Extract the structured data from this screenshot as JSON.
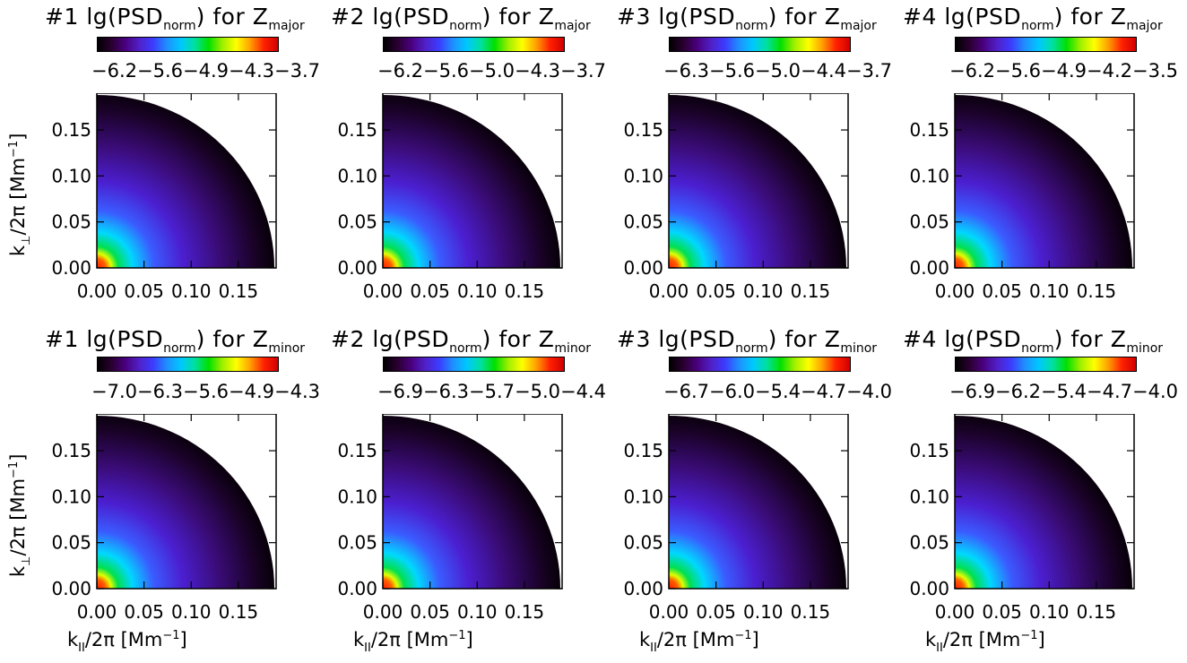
{
  "figure": {
    "y_axis_label": {
      "pre": "k",
      "sub": "⊥",
      "mid": "/2π  [Mm",
      "sup": "−1",
      "post": "]"
    },
    "x_axis_label": {
      "pre": "k",
      "sub": "II",
      "mid": "/2π  [Mm",
      "sup": "−1",
      "post": "]"
    },
    "colormap": [
      "#000000",
      "#2a0030",
      "#4a0080",
      "#5020c8",
      "#3c3cff",
      "#1e90ff",
      "#00c8ff",
      "#00e0a0",
      "#00e000",
      "#a0f000",
      "#ffff00",
      "#ffa000",
      "#ff2000",
      "#d00000"
    ]
  },
  "chart_data": [
    {
      "type": "heatmap",
      "panel": "#1",
      "component": "major",
      "title": {
        "num": "#1",
        "text": "lg(PSD",
        "sub": "norm",
        "for": ") for Z",
        "comp": "major"
      },
      "colorbar_ticks": [
        "−6.2",
        "−5.6",
        "−4.9",
        "−4.3",
        "−3.7"
      ],
      "xlim": [
        0.0,
        0.19
      ],
      "ylim": [
        0.0,
        0.19
      ],
      "x_ticks": [
        "0.00",
        "0.05",
        "0.10",
        "0.15"
      ],
      "y_ticks": [
        "0.00",
        "0.05",
        "0.10",
        "0.15"
      ],
      "domain": "quarter-disk",
      "peak_at": [
        0.0,
        0.0
      ]
    },
    {
      "type": "heatmap",
      "panel": "#2",
      "component": "major",
      "title": {
        "num": "#2",
        "text": "lg(PSD",
        "sub": "norm",
        "for": ") for Z",
        "comp": "major"
      },
      "colorbar_ticks": [
        "−6.2",
        "−5.6",
        "−5.0",
        "−4.3",
        "−3.7"
      ],
      "xlim": [
        0.0,
        0.19
      ],
      "ylim": [
        0.0,
        0.19
      ],
      "x_ticks": [
        "0.00",
        "0.05",
        "0.10",
        "0.15"
      ],
      "y_ticks": [
        "0.00",
        "0.05",
        "0.10",
        "0.15"
      ],
      "domain": "quarter-disk",
      "peak_at": [
        0.0,
        0.0
      ]
    },
    {
      "type": "heatmap",
      "panel": "#3",
      "component": "major",
      "title": {
        "num": "#3",
        "text": "lg(PSD",
        "sub": "norm",
        "for": ") for Z",
        "comp": "major"
      },
      "colorbar_ticks": [
        "−6.3",
        "−5.6",
        "−5.0",
        "−4.4",
        "−3.7"
      ],
      "xlim": [
        0.0,
        0.19
      ],
      "ylim": [
        0.0,
        0.19
      ],
      "x_ticks": [
        "0.00",
        "0.05",
        "0.10",
        "0.15"
      ],
      "y_ticks": [
        "0.00",
        "0.05",
        "0.10",
        "0.15"
      ],
      "domain": "quarter-disk",
      "peak_at": [
        0.0,
        0.0
      ]
    },
    {
      "type": "heatmap",
      "panel": "#4",
      "component": "major",
      "title": {
        "num": "#4",
        "text": "lg(PSD",
        "sub": "norm",
        "for": ") for Z",
        "comp": "major"
      },
      "colorbar_ticks": [
        "−6.2",
        "−5.6",
        "−4.9",
        "−4.2",
        "−3.5"
      ],
      "xlim": [
        0.0,
        0.19
      ],
      "ylim": [
        0.0,
        0.19
      ],
      "x_ticks": [
        "0.00",
        "0.05",
        "0.10",
        "0.15"
      ],
      "y_ticks": [
        "0.00",
        "0.05",
        "0.10",
        "0.15"
      ],
      "domain": "quarter-disk",
      "peak_at": [
        0.0,
        0.0
      ]
    },
    {
      "type": "heatmap",
      "panel": "#1",
      "component": "minor",
      "title": {
        "num": "#1",
        "text": "lg(PSD",
        "sub": "norm",
        "for": ") for Z",
        "comp": "minor"
      },
      "colorbar_ticks": [
        "−7.0",
        "−6.3",
        "−5.6",
        "−4.9",
        "−4.3"
      ],
      "xlim": [
        0.0,
        0.19
      ],
      "ylim": [
        0.0,
        0.19
      ],
      "x_ticks": [
        "0.00",
        "0.05",
        "0.10",
        "0.15"
      ],
      "y_ticks": [
        "0.00",
        "0.05",
        "0.10",
        "0.15"
      ],
      "domain": "quarter-disk",
      "peak_at": [
        0.0,
        0.0
      ]
    },
    {
      "type": "heatmap",
      "panel": "#2",
      "component": "minor",
      "title": {
        "num": "#2",
        "text": "lg(PSD",
        "sub": "norm",
        "for": ") for Z",
        "comp": "minor"
      },
      "colorbar_ticks": [
        "−6.9",
        "−6.3",
        "−5.7",
        "−5.0",
        "−4.4"
      ],
      "xlim": [
        0.0,
        0.19
      ],
      "ylim": [
        0.0,
        0.19
      ],
      "x_ticks": [
        "0.00",
        "0.05",
        "0.10",
        "0.15"
      ],
      "y_ticks": [
        "0.00",
        "0.05",
        "0.10",
        "0.15"
      ],
      "domain": "quarter-disk",
      "peak_at": [
        0.0,
        0.0
      ]
    },
    {
      "type": "heatmap",
      "panel": "#3",
      "component": "minor",
      "title": {
        "num": "#3",
        "text": "lg(PSD",
        "sub": "norm",
        "for": ") for Z",
        "comp": "minor"
      },
      "colorbar_ticks": [
        "−6.7",
        "−6.0",
        "−5.4",
        "−4.7",
        "−4.0"
      ],
      "xlim": [
        0.0,
        0.19
      ],
      "ylim": [
        0.0,
        0.19
      ],
      "x_ticks": [
        "0.00",
        "0.05",
        "0.10",
        "0.15"
      ],
      "y_ticks": [
        "0.00",
        "0.05",
        "0.10",
        "0.15"
      ],
      "domain": "quarter-disk",
      "peak_at": [
        0.0,
        0.0
      ]
    },
    {
      "type": "heatmap",
      "panel": "#4",
      "component": "minor",
      "title": {
        "num": "#4",
        "text": "lg(PSD",
        "sub": "norm",
        "for": ") for Z",
        "comp": "minor"
      },
      "colorbar_ticks": [
        "−6.9",
        "−6.2",
        "−5.4",
        "−4.7",
        "−4.0"
      ],
      "xlim": [
        0.0,
        0.19
      ],
      "ylim": [
        0.0,
        0.19
      ],
      "x_ticks": [
        "0.00",
        "0.05",
        "0.10",
        "0.15"
      ],
      "y_ticks": [
        "0.00",
        "0.05",
        "0.10",
        "0.15"
      ],
      "domain": "quarter-disk",
      "peak_at": [
        0.0,
        0.0
      ]
    }
  ]
}
